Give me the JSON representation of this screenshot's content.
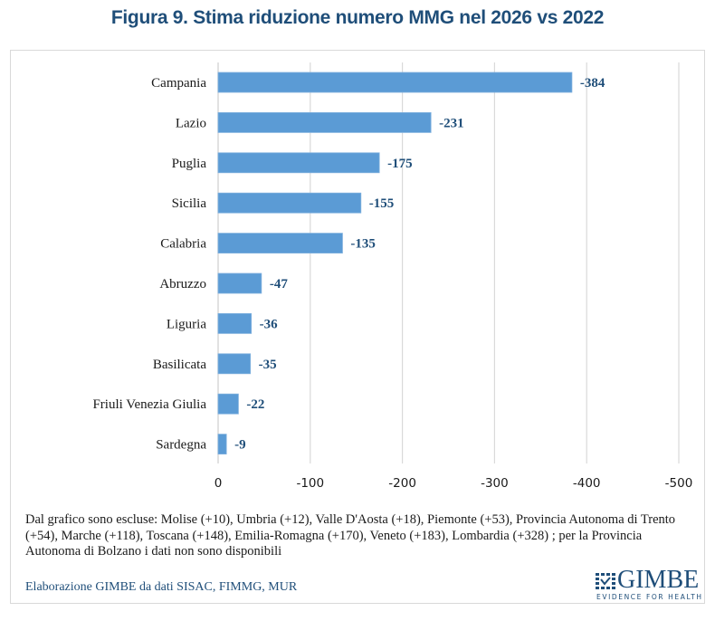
{
  "title": "Figura 9. Stima riduzione numero MMG nel 2026 vs 2022",
  "chart_data": {
    "type": "bar",
    "orientation": "horizontal",
    "title": "Figura 9. Stima riduzione numero MMG nel 2026 vs 2022",
    "xlabel": "",
    "ylabel": "",
    "categories": [
      "Campania",
      "Lazio",
      "Puglia",
      "Sicilia",
      "Calabria",
      "Abruzzo",
      "Liguria",
      "Basilicata",
      "Friuli Venezia Giulia",
      "Sardegna"
    ],
    "values": [
      -384,
      -231,
      -175,
      -155,
      -135,
      -47,
      -36,
      -35,
      -22,
      -9
    ],
    "data_labels": [
      "-384",
      "-231",
      "-175",
      "-155",
      "-135",
      "-47",
      "-36",
      "-35",
      "-22",
      "-9"
    ],
    "xlim": [
      0,
      -500
    ],
    "x_ticks": [
      0,
      -100,
      -200,
      -300,
      -400,
      -500
    ],
    "x_tick_labels": [
      "0",
      "-100",
      "-200",
      "-300",
      "-400",
      "-500"
    ],
    "grid": true,
    "legend": "none",
    "colors": {
      "bar": "#5b9bd5",
      "data_label": "#1f4e79",
      "grid": "#d9d9d9"
    }
  },
  "note": "Dal grafico sono escluse: Molise (+10), Umbria (+12), Valle D'Aosta (+18), Piemonte (+53), Provincia Autonoma di Trento (+54), Marche (+118), Toscana (+148), Emilia-Romagna (+170), Veneto (+183), Lombardia (+328) ; per la Provincia Autonoma di Bolzano i dati non sono disponibili",
  "source": "Elaborazione GIMBE da dati SISAC, FIMMG, MUR",
  "logo": {
    "name": "GIMBE",
    "tagline": "EVIDENCE FOR HEALTH"
  }
}
